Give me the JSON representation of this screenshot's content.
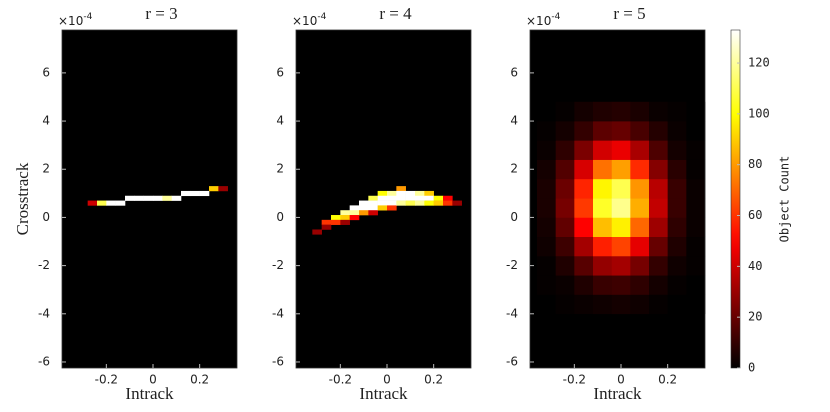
{
  "chart_data": [
    {
      "type": "heatmap",
      "title": "r = 3",
      "xlabel": "Intrack",
      "ylabel": "Crosstrack",
      "y_multiplier": "×10",
      "y_multiplier_exp": "-4",
      "colormap": "hot",
      "xlim": [
        -0.39,
        0.36
      ],
      "ylim": [
        -6.25,
        7.78
      ],
      "xticks": [
        -0.2,
        0,
        0.2
      ],
      "yticks": [
        -6,
        -4,
        -2,
        0,
        2,
        4,
        6
      ],
      "x": [
        -0.26,
        -0.22,
        -0.18,
        -0.14,
        -0.1,
        -0.06,
        -0.02,
        0.02,
        0.06,
        0.1,
        0.14,
        0.18,
        0.22,
        0.26,
        0.3
      ],
      "y": [
        0.6,
        0.6,
        0.6,
        0.6,
        0.8,
        0.8,
        0.8,
        0.8,
        0.8,
        0.8,
        1.0,
        1.0,
        1.0,
        1.2,
        1.2
      ],
      "values": [
        40,
        110,
        133,
        133,
        133,
        133,
        133,
        133,
        120,
        133,
        133,
        133,
        133,
        90,
        30
      ]
    },
    {
      "type": "heatmap",
      "title": "r = 4",
      "xlabel": "Intrack",
      "y_multiplier": "×10",
      "y_multiplier_exp": "-4",
      "colormap": "hot",
      "xlim": [
        -0.39,
        0.36
      ],
      "ylim": [
        -6.25,
        7.78
      ],
      "xticks": [
        -0.2,
        0,
        0.2
      ],
      "yticks": [
        -6,
        -4,
        -2,
        0,
        2,
        4,
        6
      ],
      "x": [
        -0.3,
        -0.26,
        -0.26,
        -0.22,
        -0.22,
        -0.18,
        -0.18,
        -0.18,
        -0.14,
        -0.14,
        -0.14,
        -0.1,
        -0.1,
        -0.1,
        -0.06,
        -0.06,
        -0.06,
        -0.06,
        -0.02,
        -0.02,
        -0.02,
        -0.02,
        0.02,
        0.02,
        0.02,
        0.02,
        0.06,
        0.06,
        0.06,
        0.06,
        0.1,
        0.1,
        0.1,
        0.14,
        0.14,
        0.14,
        0.18,
        0.18,
        0.18,
        0.22,
        0.22,
        0.26,
        0.26,
        0.3
      ],
      "y": [
        -0.6,
        -0.2,
        -0.4,
        0.0,
        -0.2,
        0.2,
        0.0,
        -0.2,
        0.4,
        0.2,
        0.0,
        0.6,
        0.4,
        0.2,
        0.8,
        0.6,
        0.4,
        0.2,
        1.0,
        0.8,
        0.6,
        0.4,
        1.0,
        0.8,
        0.6,
        0.4,
        1.2,
        1.0,
        0.8,
        0.6,
        1.0,
        0.8,
        0.6,
        1.0,
        0.8,
        0.6,
        1.0,
        0.8,
        0.6,
        0.8,
        0.6,
        0.8,
        0.6,
        0.6
      ],
      "values": [
        30,
        60,
        30,
        100,
        60,
        120,
        90,
        30,
        133,
        120,
        50,
        133,
        133,
        80,
        110,
        133,
        133,
        40,
        100,
        133,
        133,
        90,
        120,
        133,
        133,
        60,
        80,
        133,
        133,
        120,
        133,
        133,
        110,
        120,
        133,
        120,
        90,
        133,
        100,
        100,
        90,
        50,
        60,
        30
      ]
    },
    {
      "type": "heatmap",
      "title": "r = 5",
      "xlabel": "Intrack",
      "y_multiplier": "×10",
      "y_multiplier_exp": "-4",
      "colormap": "hot",
      "xlim": [
        -0.39,
        0.36
      ],
      "ylim": [
        -6.25,
        7.78
      ],
      "xticks": [
        -0.2,
        0,
        0.2
      ],
      "yticks": [
        -6,
        -4,
        -2,
        0,
        2,
        4,
        6
      ],
      "x": [
        -0.32,
        -0.24,
        -0.16,
        -0.08,
        0,
        0.08,
        0.16,
        0.24,
        0.32
      ],
      "y": [
        -3.6,
        -2.8,
        -2.0,
        -1.2,
        -0.4,
        0.4,
        1.2,
        2.0,
        2.8,
        3.6,
        4.4
      ],
      "z": [
        [
          0,
          1,
          2,
          3,
          4,
          3,
          1,
          0,
          0
        ],
        [
          1,
          2,
          6,
          11,
          12,
          9,
          4,
          1,
          0
        ],
        [
          1,
          6,
          17,
          29,
          32,
          23,
          10,
          3,
          1
        ],
        [
          3,
          12,
          32,
          56,
          63,
          45,
          20,
          6,
          1
        ],
        [
          4,
          19,
          50,
          87,
          97,
          70,
          31,
          9,
          2
        ],
        [
          5,
          23,
          61,
          105,
          118,
          84,
          38,
          11,
          2
        ],
        [
          5,
          21,
          57,
          98,
          110,
          79,
          36,
          11,
          2
        ],
        [
          4,
          16,
          42,
          72,
          81,
          58,
          26,
          8,
          1
        ],
        [
          2,
          9,
          24,
          41,
          46,
          33,
          15,
          4,
          1
        ],
        [
          1,
          4,
          10,
          18,
          20,
          14,
          7,
          2,
          0
        ],
        [
          0,
          1,
          4,
          6,
          7,
          5,
          2,
          1,
          0
        ]
      ],
      "colorbar": {
        "label": "Object Count",
        "lim": [
          0,
          133
        ],
        "ticks": [
          0,
          20,
          40,
          60,
          80,
          100,
          120
        ]
      }
    }
  ]
}
